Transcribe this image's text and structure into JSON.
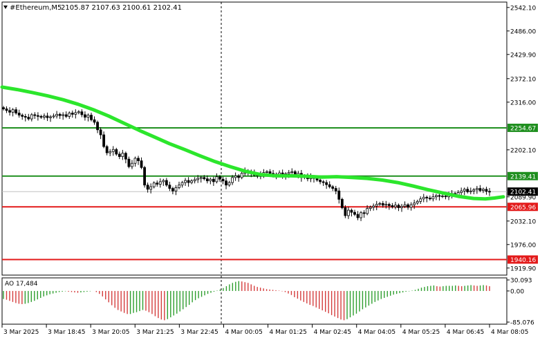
{
  "header": {
    "symbol": "#Ethereum,M5",
    "ohlc": "2105.87 2107.63 2100.61 2102.41"
  },
  "colors": {
    "background": "#ffffff",
    "candle": "#000000",
    "ma": "#2ce62c",
    "resistance": "#1f8f1f",
    "support": "#e31a1a",
    "ao_up": "#2e9e2e",
    "ao_down": "#d43c3c",
    "price_box": "#000000"
  },
  "chart_data": [
    {
      "type": "candlestick",
      "title": "#Ethereum,M5",
      "y_ticks": [
        "2542.10",
        "2486.00",
        "2429.90",
        "2372.10",
        "2316.00",
        "2202.10",
        "2089.90",
        "2032.10",
        "1976.00",
        "1919.90"
      ],
      "ylim": [
        1903,
        2555
      ],
      "x_ticks": [
        "3 Mar 2025",
        "3 Mar 18:45",
        "3 Mar 20:05",
        "3 Mar 21:25",
        "3 Mar 22:45",
        "4 Mar 00:05",
        "4 Mar 01:25",
        "4 Mar 02:45",
        "4 Mar 04:05",
        "4 Mar 05:25",
        "4 Mar 06:45",
        "4 Mar 08:05"
      ],
      "current_price": "2102.41",
      "levels": [
        {
          "value": 2254.67,
          "label": "2254.67",
          "kind": "resistance"
        },
        {
          "value": 2139.41,
          "label": "2139.41",
          "kind": "resistance"
        },
        {
          "value": 2065.96,
          "label": "2065.96",
          "kind": "support"
        },
        {
          "value": 1940.16,
          "label": "1940.16",
          "kind": "support"
        }
      ],
      "close_series": [
        2300,
        2296,
        2292,
        2298,
        2290,
        2285,
        2282,
        2280,
        2276,
        2286,
        2284,
        2282,
        2280,
        2283,
        2279,
        2281,
        2283,
        2287,
        2284,
        2286,
        2282,
        2290,
        2287,
        2291,
        2293,
        2286,
        2280,
        2285,
        2274,
        2268,
        2250,
        2238,
        2210,
        2195,
        2198,
        2203,
        2192,
        2186,
        2194,
        2180,
        2162,
        2170,
        2182,
        2176,
        2160,
        2118,
        2108,
        2114,
        2123,
        2120,
        2126,
        2129,
        2118,
        2110,
        2104,
        2112,
        2118,
        2124,
        2129,
        2124,
        2128,
        2131,
        2134,
        2136,
        2133,
        2128,
        2132,
        2126,
        2138,
        2132,
        2128,
        2118,
        2124,
        2136,
        2140,
        2136,
        2146,
        2152,
        2149,
        2147,
        2142,
        2140,
        2145,
        2148,
        2150,
        2146,
        2144,
        2142,
        2147,
        2139,
        2145,
        2148,
        2150,
        2142,
        2146,
        2136,
        2140,
        2133,
        2138,
        2134,
        2130,
        2126,
        2124,
        2119,
        2114,
        2110,
        2104,
        2084,
        2064,
        2045,
        2058,
        2053,
        2048,
        2040,
        2052,
        2050,
        2062,
        2065,
        2068,
        2072,
        2074,
        2070,
        2072,
        2069,
        2066,
        2070,
        2064,
        2067,
        2071,
        2065,
        2071,
        2075,
        2079,
        2085,
        2089,
        2087,
        2085,
        2090,
        2093,
        2091,
        2092,
        2090,
        2096,
        2098,
        2094,
        2100,
        2104,
        2108,
        2102,
        2104,
        2107,
        2110,
        2105,
        2108,
        2103,
        2102
      ],
      "ma_series": [
        2352,
        2346,
        2339,
        2331,
        2322,
        2311,
        2298,
        2283,
        2266,
        2249,
        2233,
        2217,
        2203,
        2188,
        2174,
        2162,
        2151,
        2143,
        2140,
        2140,
        2139,
        2137,
        2138,
        2136,
        2134,
        2130,
        2124,
        2116,
        2107,
        2099,
        2091,
        2086,
        2085,
        2087,
        2090
      ],
      "ma_x": [
        0,
        22,
        44,
        66,
        88,
        110,
        132,
        154,
        176,
        198,
        220,
        242,
        264,
        286,
        308,
        330,
        352,
        374,
        396,
        418,
        440,
        462,
        484,
        506,
        528,
        550,
        572,
        594,
        616,
        638,
        660,
        682,
        699,
        712,
        725
      ]
    },
    {
      "type": "bar",
      "title": "AO 17,484",
      "y_ticks": [
        "30.093",
        "0.00",
        "-85.076"
      ],
      "ylim": [
        -85.076,
        30.093
      ],
      "values": [
        -22,
        -24,
        -27,
        -30,
        -33,
        -35,
        -36,
        -35,
        -33,
        -30,
        -27,
        -23,
        -19,
        -15,
        -12,
        -9,
        -7,
        -5,
        -3,
        -2,
        -1,
        -2,
        -3,
        -4,
        -5,
        -4,
        -3,
        -2,
        -1,
        0,
        -3,
        -8,
        -15,
        -23,
        -31,
        -39,
        -46,
        -52,
        -56,
        -60,
        -63,
        -63,
        -60,
        -58,
        -55,
        -52,
        -54,
        -58,
        -63,
        -69,
        -74,
        -78,
        -80,
        -77,
        -72,
        -67,
        -62,
        -56,
        -50,
        -44,
        -38,
        -31,
        -25,
        -20,
        -16,
        -12,
        -8,
        -5,
        -2,
        1,
        4,
        8,
        13,
        18,
        22,
        25,
        27,
        26,
        24,
        22,
        18,
        14,
        11,
        9,
        7,
        5,
        4,
        3,
        2,
        1,
        -1,
        -3,
        -7,
        -11,
        -17,
        -21,
        -26,
        -30,
        -34,
        -38,
        -41,
        -45,
        -49,
        -53,
        -57,
        -61,
        -66,
        -70,
        -74,
        -78,
        -80,
        -77,
        -72,
        -67,
        -62,
        -56,
        -50,
        -45,
        -40,
        -35,
        -30,
        -26,
        -22,
        -19,
        -16,
        -13,
        -10,
        -8,
        -6,
        -4,
        -2,
        -1,
        1,
        3,
        6,
        9,
        11,
        13,
        14,
        15,
        13,
        12,
        13,
        14,
        14,
        14,
        15,
        14,
        13,
        14,
        15,
        16,
        15,
        14,
        15,
        16,
        15,
        13
      ]
    }
  ]
}
